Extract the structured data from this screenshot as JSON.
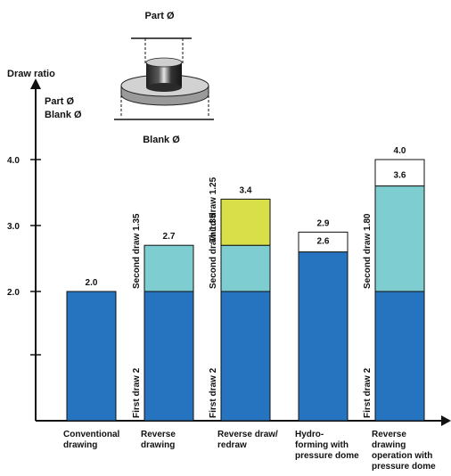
{
  "chart_data": {
    "type": "bar",
    "stacked": true,
    "y_axis_title": "Draw ratio",
    "y_axis_formula": [
      "Part Ø",
      "Blank Ø"
    ],
    "ylim": [
      1.0,
      4.0
    ],
    "yticks": [
      {
        "value": 1.5,
        "label": ""
      },
      {
        "value": 2.0,
        "label": "2.0"
      },
      {
        "value": 3.0,
        "label": "3.0"
      },
      {
        "value": 4.0,
        "label": "4.0"
      }
    ],
    "categories": [
      [
        "Conventional",
        "drawing"
      ],
      [
        "Reverse",
        "drawing"
      ],
      [
        "Reverse draw/",
        "redraw"
      ],
      [
        "Hydro-",
        "forming with",
        "pressure dome"
      ],
      [
        "Reverse",
        "drawing",
        "operation with",
        "pressure dome"
      ]
    ],
    "bars": [
      {
        "segments": [
          {
            "top": 2.0,
            "color": "#2673c0"
          }
        ],
        "value_labels": [
          "2.0"
        ],
        "stage_labels": []
      },
      {
        "segments": [
          {
            "top": 2.0,
            "color": "#2673c0"
          },
          {
            "top": 2.7,
            "color": "#7ecdd0"
          }
        ],
        "value_labels": [
          "2.7"
        ],
        "stage_labels": [
          "First draw 2",
          "Second draw 1.35"
        ]
      },
      {
        "segments": [
          {
            "top": 2.0,
            "color": "#2673c0"
          },
          {
            "top": 2.7,
            "color": "#7ecdd0"
          },
          {
            "top": 3.4,
            "color": "#d9df48"
          }
        ],
        "value_labels": [
          "3.4"
        ],
        "stage_labels": [
          "First draw 2",
          "Second draw 1.35",
          "Third draw 1.25"
        ]
      },
      {
        "segments": [
          {
            "top": 2.6,
            "color": "#2673c0"
          },
          {
            "top": 2.9,
            "color": "#ffffff"
          }
        ],
        "value_labels": [
          "2.9",
          "2.6"
        ],
        "stage_labels": []
      },
      {
        "segments": [
          {
            "top": 2.0,
            "color": "#2673c0"
          },
          {
            "top": 3.6,
            "color": "#7ecdd0"
          },
          {
            "top": 4.0,
            "color": "#ffffff"
          }
        ],
        "value_labels": [
          "4.0",
          "3.6"
        ],
        "stage_labels": [
          "First draw 2",
          "Second draw 1.80"
        ]
      }
    ]
  },
  "illustration": {
    "part_label": "Part Ø",
    "blank_label": "Blank Ø"
  }
}
